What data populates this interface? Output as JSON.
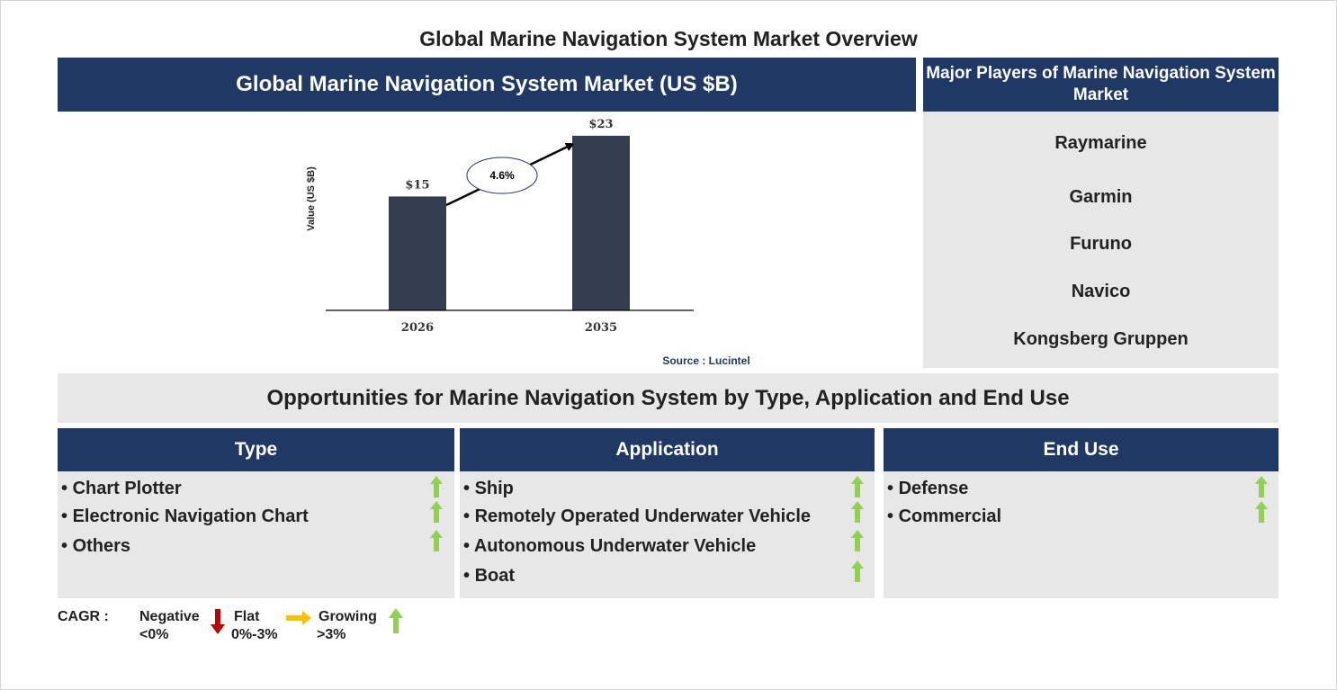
{
  "page_title": "Global Marine Navigation System Market Overview",
  "chart_header": "Global Marine Navigation System Market (US $B)",
  "chart_data": {
    "type": "bar",
    "categories": [
      "2026",
      "2035"
    ],
    "values": [
      15,
      23
    ],
    "value_labels": [
      "$15",
      "$23"
    ],
    "ylabel": "Value (US $B)",
    "xlabel": "",
    "cagr_label": "4.6%",
    "bar_color": "#333f50",
    "ylim": [
      0,
      25
    ]
  },
  "source": "Source : Lucintel",
  "players": {
    "header": "Major Players of Marine Navigation System Market",
    "items": [
      "Raymarine",
      "Garmin",
      "Furuno",
      "Navico",
      "Kongsberg Gruppen"
    ]
  },
  "opportunities_title": "Opportunities for Marine Navigation System by Type, Application and End Use",
  "columns": [
    {
      "header": "Type",
      "items": [
        "Chart Plotter",
        "Electronic Navigation Chart",
        "Others"
      ]
    },
    {
      "header": "Application",
      "items": [
        "Ship",
        "Remotely Operated Underwater Vehicle",
        "Autonomous Underwater Vehicle",
        "Boat"
      ]
    },
    {
      "header": "End Use",
      "items": [
        "Defense",
        "Commercial"
      ]
    }
  ],
  "legend": {
    "cagr_label": "CAGR :",
    "negative": "Negative",
    "negative_range": "<0%",
    "flat": "Flat",
    "flat_range": "0%-3%",
    "growing": "Growing",
    "growing_range": ">3%"
  },
  "colors": {
    "navy": "#1f3864",
    "panel_gray": "#e7e7e7",
    "growing_green": "#92d050",
    "negative_red": "#c00000",
    "flat_orange": "#ffc000",
    "source_blue": "#1f3864"
  },
  "icons": {
    "growing": "up-arrow-icon",
    "negative": "down-arrow-icon",
    "flat": "right-arrow-icon"
  }
}
